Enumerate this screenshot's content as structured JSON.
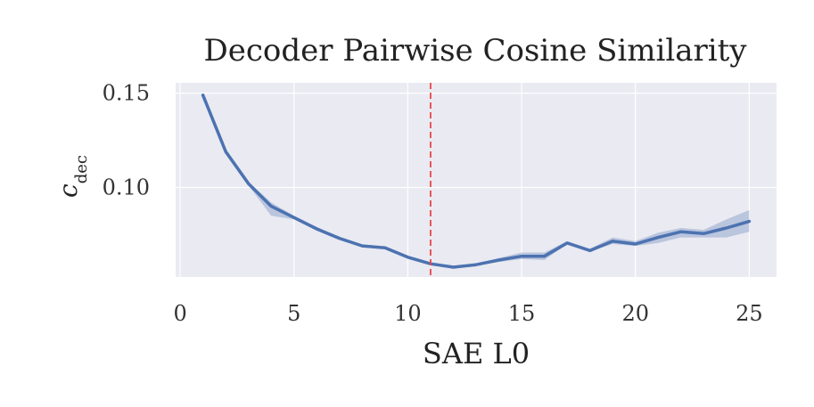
{
  "chart_data": {
    "type": "line",
    "title": "Decoder Pairwise Cosine Similarity",
    "xlabel": "SAE L0",
    "ylabel": "c",
    "ylabel_subscript": "dec",
    "xlim": [
      -0.2,
      26.2
    ],
    "ylim": [
      0.0525,
      0.1555
    ],
    "xticks": [
      0,
      5,
      10,
      15,
      20,
      25
    ],
    "yticks": [
      0.1,
      0.15
    ],
    "xtick_labels": [
      "0",
      "5",
      "10",
      "15",
      "20",
      "25"
    ],
    "ytick_labels": [
      "0.10",
      "0.15"
    ],
    "grid": true,
    "reference_line": {
      "x": 11,
      "style": "dashed",
      "color": "#e8474a"
    },
    "series": [
      {
        "color": "#4c72b0",
        "x": [
          1,
          2,
          3,
          4,
          5,
          6,
          7,
          8,
          9,
          10,
          11,
          12,
          13,
          14,
          15,
          16,
          17,
          18,
          19,
          20,
          21,
          22,
          23,
          24,
          25
        ],
        "values": [
          0.149,
          0.119,
          0.102,
          0.09,
          0.084,
          0.078,
          0.073,
          0.069,
          0.068,
          0.063,
          0.0595,
          0.0577,
          0.059,
          0.0615,
          0.0635,
          0.0635,
          0.0705,
          0.0665,
          0.0715,
          0.07,
          0.0735,
          0.0765,
          0.0755,
          0.0785,
          0.082
        ],
        "band_low": [
          0.149,
          0.119,
          0.101,
          0.085,
          0.083,
          0.077,
          0.072,
          0.0685,
          0.0675,
          0.0625,
          0.059,
          0.057,
          0.0585,
          0.0605,
          0.062,
          0.0615,
          0.07,
          0.066,
          0.07,
          0.069,
          0.0705,
          0.0735,
          0.0735,
          0.0735,
          0.0765
        ],
        "band_high": [
          0.149,
          0.119,
          0.103,
          0.092,
          0.085,
          0.079,
          0.0735,
          0.0695,
          0.0685,
          0.0635,
          0.06,
          0.0585,
          0.0595,
          0.0625,
          0.0655,
          0.0655,
          0.0715,
          0.0675,
          0.0735,
          0.0715,
          0.076,
          0.0785,
          0.0775,
          0.083,
          0.088
        ]
      }
    ]
  }
}
